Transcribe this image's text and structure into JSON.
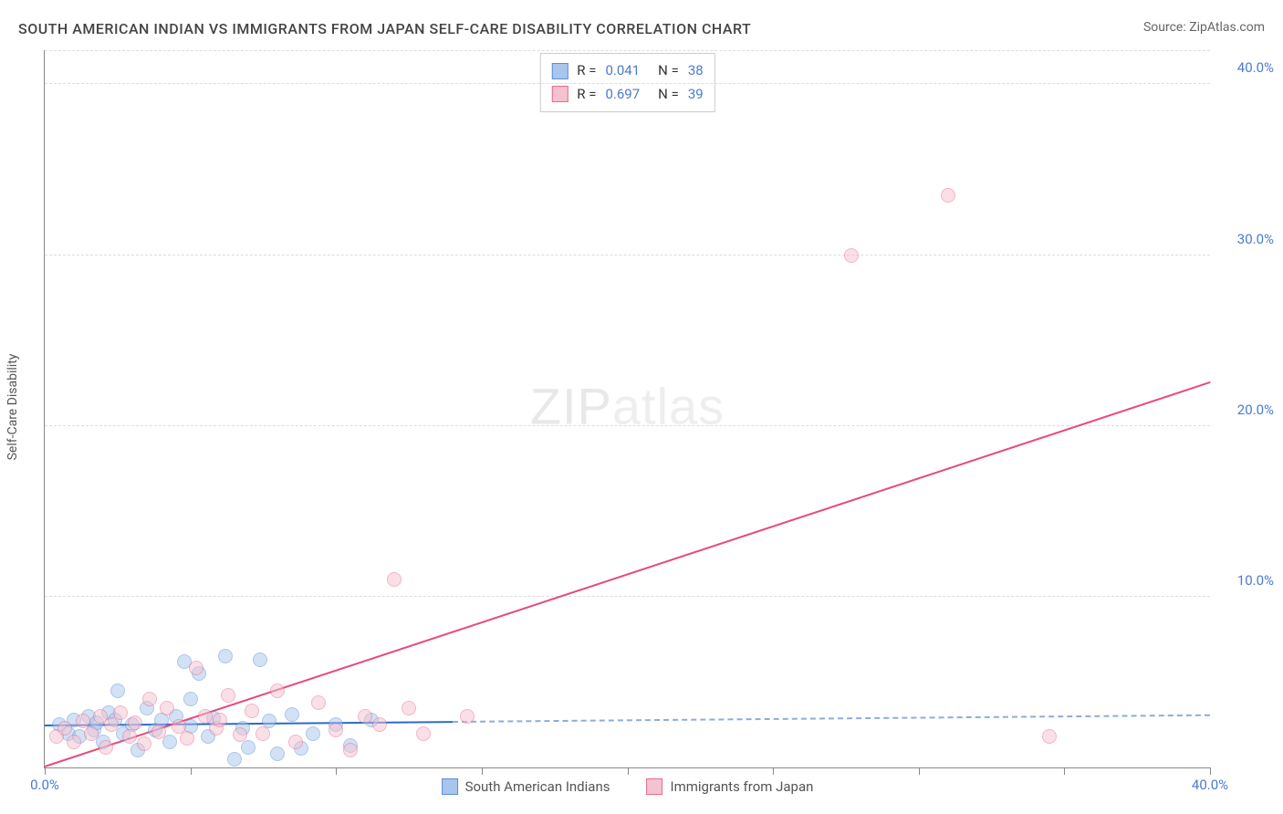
{
  "title": "SOUTH AMERICAN INDIAN VS IMMIGRANTS FROM JAPAN SELF-CARE DISABILITY CORRELATION CHART",
  "source": "Source: ZipAtlas.com",
  "watermark": "ZIPatlas",
  "y_axis_label": "Self-Care Disability",
  "chart": {
    "type": "scatter",
    "xlim": [
      0,
      40
    ],
    "ylim": [
      0,
      42
    ],
    "x_ticks": [
      0,
      5,
      10,
      15,
      20,
      25,
      30,
      35,
      40
    ],
    "x_tick_labels": {
      "0": "0.0%",
      "40": "40.0%"
    },
    "y_gridlines": [
      10,
      20,
      30,
      40
    ],
    "y_tick_labels": {
      "10": "10.0%",
      "20": "20.0%",
      "30": "30.0%",
      "40": "40.0%"
    },
    "background_color": "#ffffff",
    "grid_color": "#dddddd",
    "axis_color": "#888888",
    "tick_label_color": "#4a7bd0",
    "marker_radius": 8,
    "marker_opacity": 0.5,
    "series": [
      {
        "name": "South American Indians",
        "color_fill": "#a8c5ed",
        "color_stroke": "#5b8fd6",
        "trend_color": "#2d6bc4",
        "r": "0.041",
        "n": "38",
        "trend": {
          "x1": 0,
          "y1": 2.4,
          "x2": 40,
          "y2": 3.0,
          "solid_until_x": 14
        },
        "points": [
          [
            0.5,
            2.5
          ],
          [
            0.8,
            2.0
          ],
          [
            1.0,
            2.8
          ],
          [
            1.2,
            1.8
          ],
          [
            1.5,
            3.0
          ],
          [
            1.7,
            2.2
          ],
          [
            1.8,
            2.6
          ],
          [
            2.0,
            1.5
          ],
          [
            2.2,
            3.2
          ],
          [
            2.4,
            2.8
          ],
          [
            2.5,
            4.5
          ],
          [
            2.7,
            2.0
          ],
          [
            3.0,
            2.5
          ],
          [
            3.2,
            1.0
          ],
          [
            3.5,
            3.5
          ],
          [
            3.8,
            2.2
          ],
          [
            4.0,
            2.8
          ],
          [
            4.3,
            1.5
          ],
          [
            4.5,
            3.0
          ],
          [
            4.8,
            6.2
          ],
          [
            5.0,
            2.4
          ],
          [
            5.3,
            5.5
          ],
          [
            5.6,
            1.8
          ],
          [
            5.8,
            2.9
          ],
          [
            6.2,
            6.5
          ],
          [
            6.5,
            0.5
          ],
          [
            6.8,
            2.3
          ],
          [
            7.0,
            1.2
          ],
          [
            7.4,
            6.3
          ],
          [
            7.7,
            2.7
          ],
          [
            8.0,
            0.8
          ],
          [
            8.5,
            3.1
          ],
          [
            8.8,
            1.1
          ],
          [
            9.2,
            2.0
          ],
          [
            10.0,
            2.5
          ],
          [
            10.5,
            1.3
          ],
          [
            11.2,
            2.8
          ],
          [
            5.0,
            4.0
          ]
        ]
      },
      {
        "name": "Immigrants from Japan",
        "color_fill": "#f5c2cf",
        "color_stroke": "#e86b8f",
        "trend_color": "#e84a7a",
        "r": "0.697",
        "n": "39",
        "trend": {
          "x1": 0,
          "y1": 0.0,
          "x2": 40,
          "y2": 22.5,
          "solid_until_x": 40
        },
        "points": [
          [
            0.4,
            1.8
          ],
          [
            0.7,
            2.3
          ],
          [
            1.0,
            1.5
          ],
          [
            1.3,
            2.7
          ],
          [
            1.6,
            2.0
          ],
          [
            1.9,
            3.0
          ],
          [
            2.1,
            1.2
          ],
          [
            2.3,
            2.5
          ],
          [
            2.6,
            3.2
          ],
          [
            2.9,
            1.8
          ],
          [
            3.1,
            2.6
          ],
          [
            3.4,
            1.4
          ],
          [
            3.6,
            4.0
          ],
          [
            3.9,
            2.1
          ],
          [
            4.2,
            3.5
          ],
          [
            4.6,
            2.4
          ],
          [
            4.9,
            1.7
          ],
          [
            5.2,
            5.8
          ],
          [
            5.5,
            3.0
          ],
          [
            5.9,
            2.3
          ],
          [
            6.3,
            4.2
          ],
          [
            6.7,
            1.9
          ],
          [
            7.1,
            3.3
          ],
          [
            7.5,
            2.0
          ],
          [
            8.0,
            4.5
          ],
          [
            8.6,
            1.5
          ],
          [
            9.4,
            3.8
          ],
          [
            10.0,
            2.2
          ],
          [
            10.5,
            1.0
          ],
          [
            11.0,
            3.0
          ],
          [
            11.5,
            2.5
          ],
          [
            12.0,
            11.0
          ],
          [
            12.5,
            3.5
          ],
          [
            13.0,
            2.0
          ],
          [
            14.5,
            3.0
          ],
          [
            27.7,
            30.0
          ],
          [
            31.0,
            33.5
          ],
          [
            34.5,
            1.8
          ],
          [
            6.0,
            2.8
          ]
        ]
      }
    ]
  },
  "legend_top": [
    {
      "swatch_fill": "#a8c5ed",
      "swatch_stroke": "#5b8fd6",
      "r_label": "R =",
      "r": "0.041",
      "n_label": "N =",
      "n": "38"
    },
    {
      "swatch_fill": "#f5c2cf",
      "swatch_stroke": "#e86b8f",
      "r_label": "R =",
      "r": "0.697",
      "n_label": "N =",
      "n": "39"
    }
  ],
  "legend_bottom": [
    {
      "swatch_fill": "#a8c5ed",
      "swatch_stroke": "#5b8fd6",
      "label": "South American Indians"
    },
    {
      "swatch_fill": "#f5c2cf",
      "swatch_stroke": "#e86b8f",
      "label": "Immigrants from Japan"
    }
  ]
}
